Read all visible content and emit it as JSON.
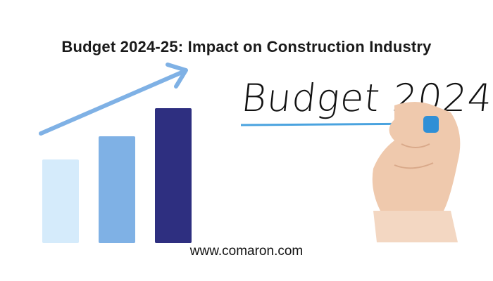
{
  "title": "Budget 2024-25: Impact on Construction Industry",
  "handwritten_text": "Budget 2024",
  "website": "www.comaron.com",
  "graphic": {
    "bars": [
      {
        "color": "#d5ebfb",
        "level": 0.62
      },
      {
        "color": "#7fb1e5",
        "level": 0.79
      },
      {
        "color": "#2e2f80",
        "level": 1.0
      }
    ],
    "arrow_color": "#7fb1e5",
    "underline_color": "#4aa3df"
  }
}
